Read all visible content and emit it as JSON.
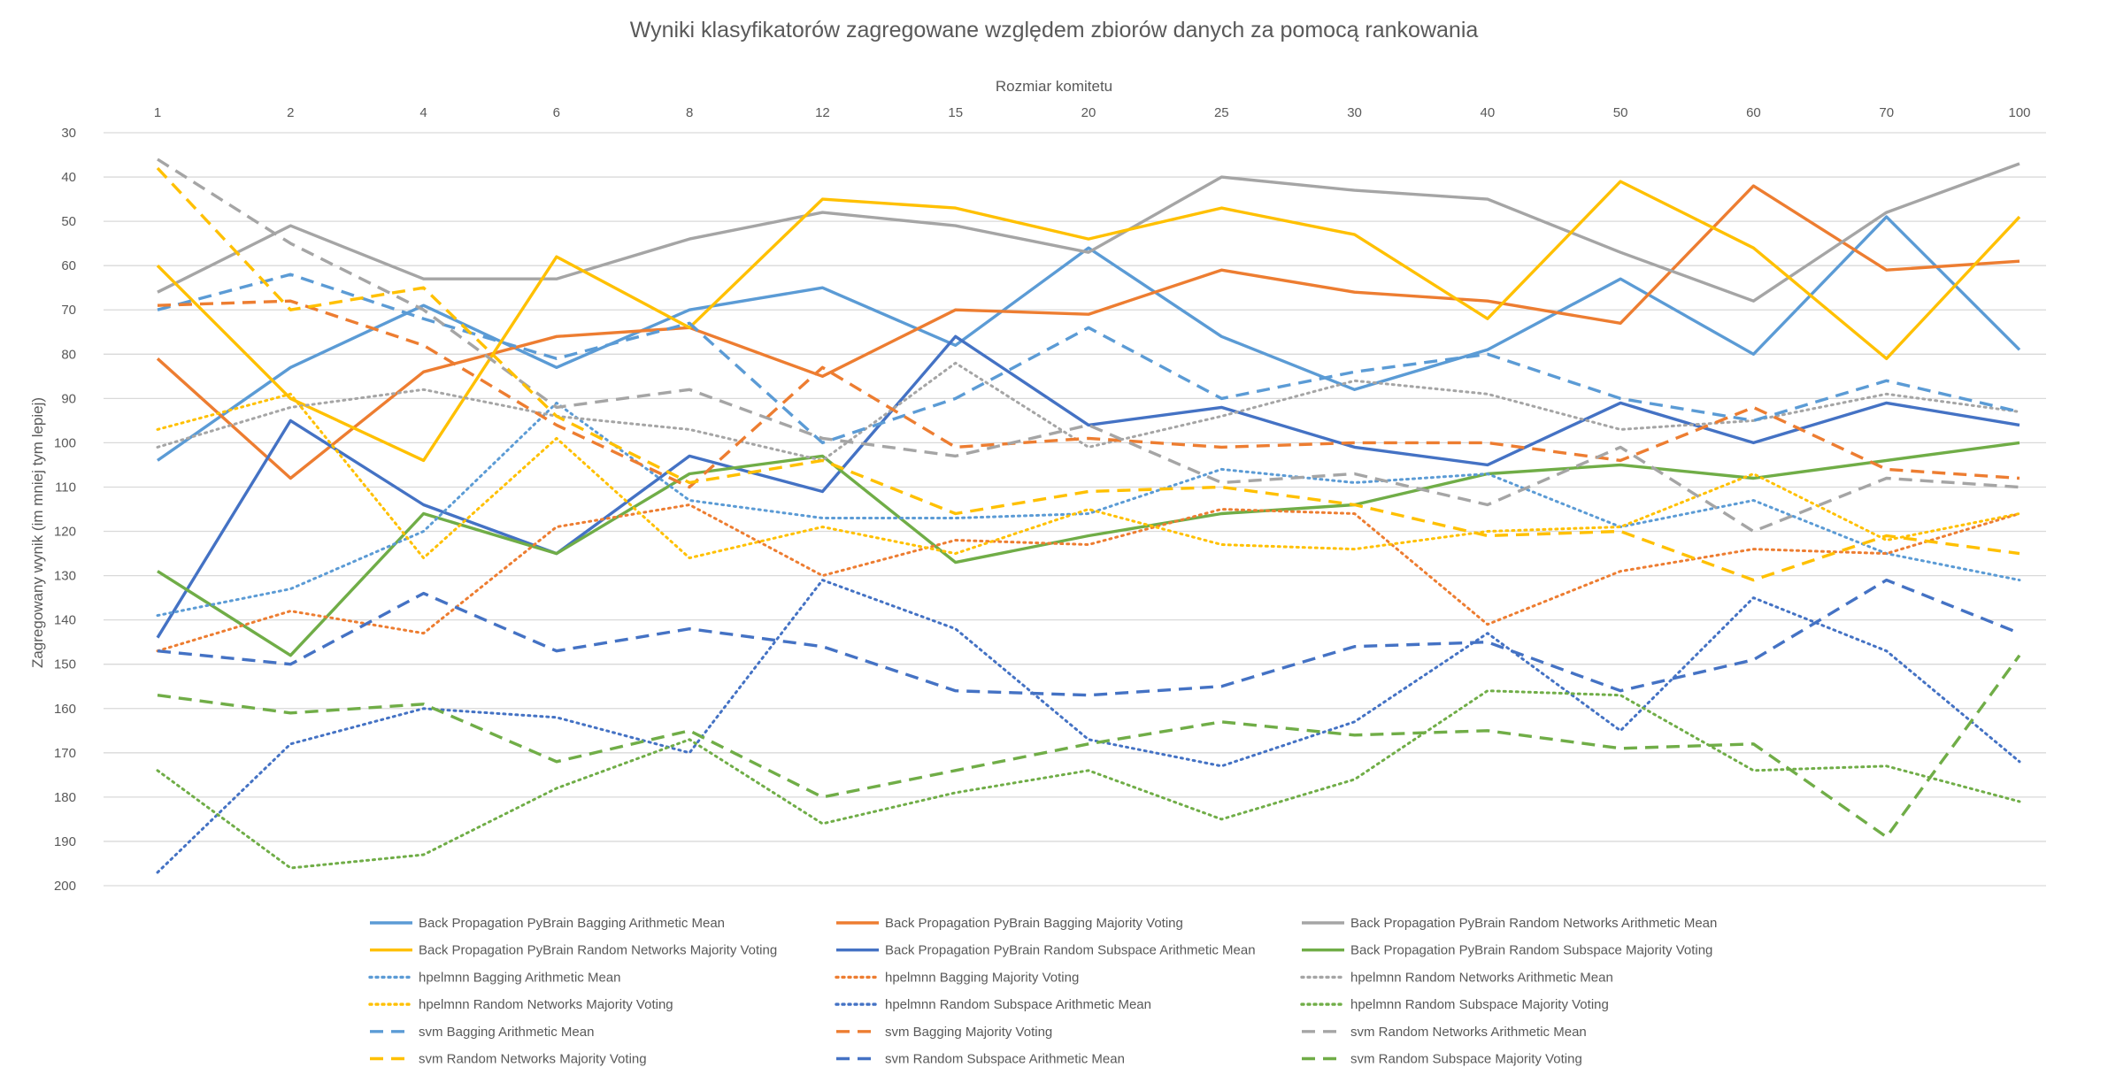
{
  "chart_data": {
    "type": "line",
    "title": "Wyniki klasyfikatorów zagregowane względem zbiorów danych za pomocą rankowania",
    "xlabel": "Rozmiar komitetu",
    "ylabel": "Zagregowany wynik (im mniej tym lepiej)",
    "categories": [
      "1",
      "2",
      "4",
      "6",
      "8",
      "12",
      "15",
      "20",
      "25",
      "30",
      "40",
      "50",
      "60",
      "70",
      "100"
    ],
    "ylim": [
      30,
      200
    ],
    "y_reversed": true,
    "y_ticks": [
      "30",
      "40",
      "50",
      "60",
      "70",
      "80",
      "90",
      "100",
      "110",
      "120",
      "130",
      "140",
      "150",
      "160",
      "170",
      "180",
      "190",
      "200"
    ],
    "grid": "horizontal",
    "x_axis_position": "top",
    "legend_position": "bottom",
    "series": [
      {
        "name": "Back Propagation PyBrain Bagging Arithmetic Mean",
        "color": "#5B9BD5",
        "dash": "solid",
        "values": [
          104,
          83,
          69,
          83,
          70,
          65,
          78,
          56,
          76,
          88,
          79,
          63,
          80,
          49,
          79
        ]
      },
      {
        "name": "Back Propagation PyBrain Bagging Majority Voting",
        "color": "#ED7D31",
        "dash": "solid",
        "values": [
          81,
          108,
          84,
          76,
          74,
          85,
          70,
          71,
          61,
          66,
          68,
          73,
          42,
          61,
          59
        ]
      },
      {
        "name": "Back Propagation PyBrain Random Networks Arithmetic Mean",
        "color": "#A5A5A5",
        "dash": "solid",
        "values": [
          66,
          51,
          63,
          63,
          54,
          48,
          51,
          57,
          40,
          43,
          45,
          57,
          68,
          48,
          37
        ]
      },
      {
        "name": "Back Propagation PyBrain Random Networks Majority Voting",
        "color": "#FFC000",
        "dash": "solid",
        "values": [
          60,
          90,
          104,
          58,
          74,
          45,
          47,
          54,
          47,
          53,
          72,
          41,
          56,
          81,
          49
        ]
      },
      {
        "name": "Back Propagation PyBrain Random Subspace Arithmetic Mean",
        "color": "#4472C4",
        "dash": "solid",
        "values": [
          144,
          95,
          114,
          125,
          103,
          111,
          76,
          96,
          92,
          101,
          105,
          91,
          100,
          91,
          96
        ]
      },
      {
        "name": "Back Propagation PyBrain Random Subspace Majority Voting",
        "color": "#70AD47",
        "dash": "solid",
        "values": [
          129,
          148,
          116,
          125,
          107,
          103,
          127,
          121,
          116,
          114,
          107,
          105,
          108,
          104,
          100
        ]
      },
      {
        "name": "hpelmnn Bagging Arithmetic Mean",
        "color": "#5B9BD5",
        "dash": "dot",
        "values": [
          139,
          133,
          120,
          91,
          113,
          117,
          117,
          116,
          106,
          109,
          107,
          119,
          113,
          125,
          131
        ]
      },
      {
        "name": "hpelmnn Bagging Majority Voting",
        "color": "#ED7D31",
        "dash": "dot",
        "values": [
          147,
          138,
          143,
          119,
          114,
          130,
          122,
          123,
          115,
          116,
          141,
          129,
          124,
          125,
          116
        ]
      },
      {
        "name": "hpelmnn Random Networks Arithmetic Mean",
        "color": "#A5A5A5",
        "dash": "dot",
        "values": [
          101,
          92,
          88,
          94,
          97,
          104,
          82,
          101,
          94,
          86,
          89,
          97,
          95,
          89,
          93
        ]
      },
      {
        "name": "hpelmnn Random Networks Majority Voting",
        "color": "#FFC000",
        "dash": "dot",
        "values": [
          97,
          89,
          126,
          99,
          126,
          119,
          125,
          115,
          123,
          124,
          120,
          119,
          107,
          122,
          116
        ]
      },
      {
        "name": "hpelmnn Random Subspace Arithmetic Mean",
        "color": "#4472C4",
        "dash": "dot",
        "values": [
          197,
          168,
          160,
          162,
          170,
          131,
          142,
          167,
          173,
          163,
          143,
          165,
          135,
          147,
          172
        ]
      },
      {
        "name": "hpelmnn Random Subspace Majority Voting",
        "color": "#70AD47",
        "dash": "dot",
        "values": [
          174,
          196,
          193,
          178,
          167,
          186,
          179,
          174,
          185,
          176,
          156,
          157,
          174,
          173,
          181
        ]
      },
      {
        "name": "svm Bagging Arithmetic Mean",
        "color": "#5B9BD5",
        "dash": "dash",
        "values": [
          70,
          62,
          72,
          81,
          73,
          100,
          90,
          74,
          90,
          84,
          80,
          90,
          95,
          86,
          93
        ]
      },
      {
        "name": "svm Bagging Majority Voting",
        "color": "#ED7D31",
        "dash": "dash",
        "values": [
          69,
          68,
          78,
          96,
          110,
          83,
          101,
          99,
          101,
          100,
          100,
          104,
          92,
          106,
          108
        ]
      },
      {
        "name": "svm Random Networks Arithmetic Mean",
        "color": "#A5A5A5",
        "dash": "dash",
        "values": [
          36,
          55,
          70,
          92,
          88,
          99,
          103,
          96,
          109,
          107,
          114,
          101,
          120,
          108,
          110
        ]
      },
      {
        "name": "svm Random Networks Majority Voting",
        "color": "#FFC000",
        "dash": "dash",
        "values": [
          38,
          70,
          65,
          94,
          109,
          104,
          116,
          111,
          110,
          114,
          121,
          120,
          131,
          121,
          125
        ]
      },
      {
        "name": "svm Random Subspace Arithmetic Mean",
        "color": "#4472C4",
        "dash": "dash",
        "values": [
          147,
          150,
          134,
          147,
          142,
          146,
          156,
          157,
          155,
          146,
          145,
          156,
          149,
          131,
          143
        ]
      },
      {
        "name": "svm Random Subspace Majority Voting",
        "color": "#70AD47",
        "dash": "dash",
        "values": [
          157,
          161,
          159,
          172,
          165,
          180,
          174,
          168,
          163,
          166,
          165,
          169,
          168,
          189,
          148
        ]
      }
    ]
  }
}
